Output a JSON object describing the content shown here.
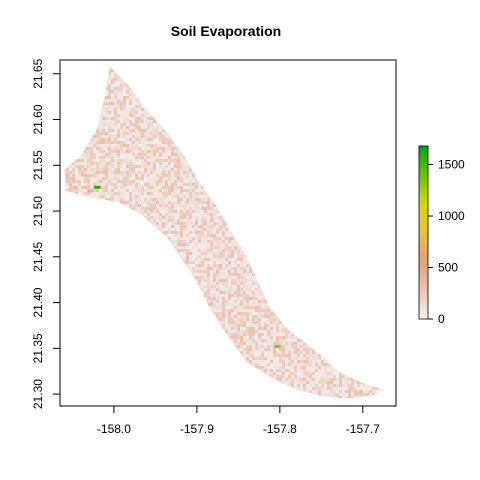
{
  "chart_data": {
    "type": "heatmap",
    "title": "Soil Evaporation",
    "xlabel": "",
    "ylabel": "",
    "xlim": [
      -158.065,
      -157.66
    ],
    "ylim": [
      21.287,
      21.665
    ],
    "x_ticks": [
      -158.0,
      -157.9,
      -157.8,
      -157.7
    ],
    "x_tick_labels": [
      "-158.0",
      "-157.9",
      "-157.8",
      "-157.7"
    ],
    "y_ticks": [
      21.3,
      21.35,
      21.4,
      21.45,
      21.5,
      21.55,
      21.6,
      21.65
    ],
    "y_tick_labels": [
      "21.30",
      "21.35",
      "21.40",
      "21.45",
      "21.50",
      "21.55",
      "21.60",
      "21.65"
    ],
    "legend": {
      "placement": "right",
      "min": 0,
      "max": 1680,
      "ticks": [
        0,
        500,
        1000,
        1500
      ],
      "tick_labels": [
        "0",
        "500",
        "1000",
        "1500"
      ],
      "colors": [
        "#f2f2f2",
        "#ecc2b0",
        "#e6a276",
        "#e8c13a",
        "#d4d900",
        "#6bc400",
        "#00a600"
      ]
    },
    "region_outline": [
      [
        -158.005,
        21.658
      ],
      [
        -157.985,
        21.64
      ],
      [
        -157.96,
        21.61
      ],
      [
        -157.935,
        21.585
      ],
      [
        -157.915,
        21.56
      ],
      [
        -157.9,
        21.535
      ],
      [
        -157.88,
        21.51
      ],
      [
        -157.86,
        21.48
      ],
      [
        -157.84,
        21.45
      ],
      [
        -157.825,
        21.42
      ],
      [
        -157.812,
        21.395
      ],
      [
        -157.79,
        21.37
      ],
      [
        -157.76,
        21.35
      ],
      [
        -157.73,
        21.325
      ],
      [
        -157.7,
        21.312
      ],
      [
        -157.675,
        21.305
      ],
      [
        -157.69,
        21.298
      ],
      [
        -157.72,
        21.295
      ],
      [
        -157.75,
        21.298
      ],
      [
        -157.78,
        21.305
      ],
      [
        -157.81,
        21.318
      ],
      [
        -157.84,
        21.335
      ],
      [
        -157.86,
        21.36
      ],
      [
        -157.885,
        21.395
      ],
      [
        -157.905,
        21.43
      ],
      [
        -157.935,
        21.47
      ],
      [
        -157.965,
        21.495
      ],
      [
        -157.995,
        21.51
      ],
      [
        -158.03,
        21.515
      ],
      [
        -158.058,
        21.522
      ],
      [
        -158.06,
        21.545
      ],
      [
        -158.04,
        21.56
      ],
      [
        -158.02,
        21.59
      ],
      [
        -158.01,
        21.63
      ]
    ],
    "highlights": [
      {
        "x": -158.028,
        "y": 21.522,
        "value": 400
      },
      {
        "x": -158.02,
        "y": 21.526,
        "value": 1600
      },
      {
        "x": -157.803,
        "y": 21.352,
        "value": 1300
      }
    ]
  }
}
